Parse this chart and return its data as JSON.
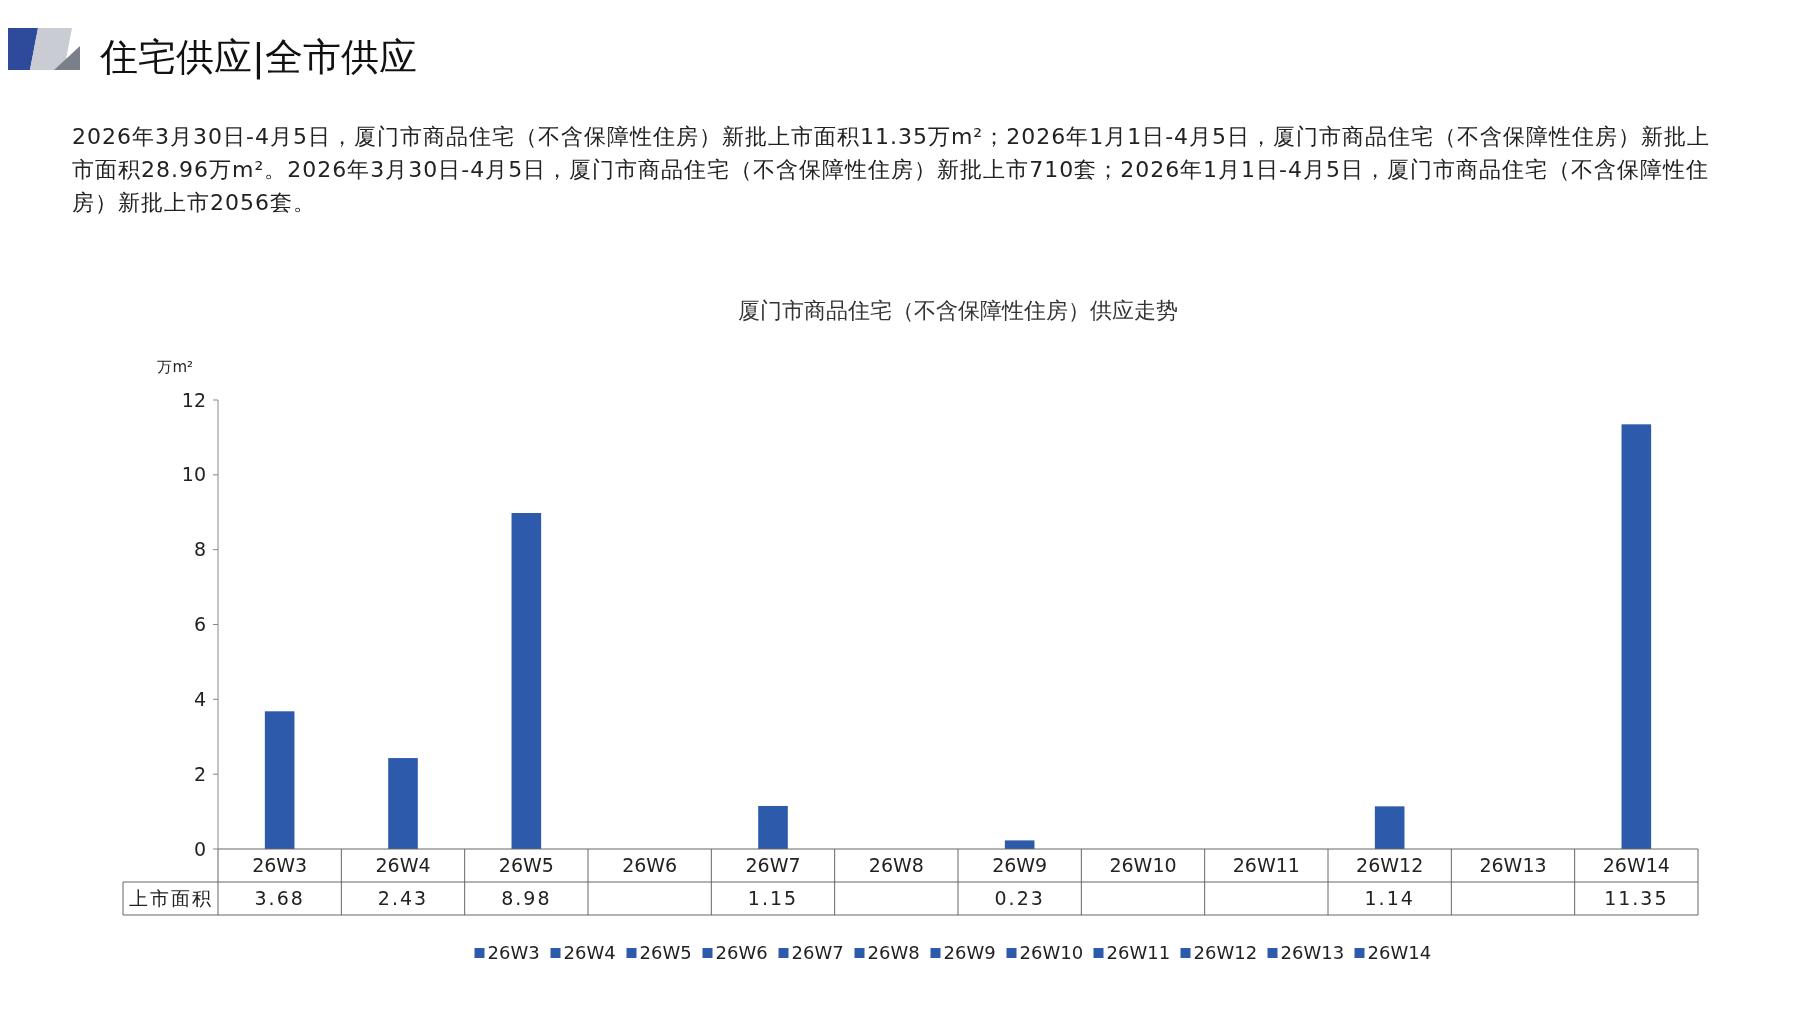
{
  "chart_data": {
    "type": "bar",
    "title": "厦门市商品住宅（不含保障性住房）供应走势",
    "ylabel": "万m²",
    "annotations": [
      "住宅供应|全市供应",
      "2026年3月30日-4月5日，厦门市商品住宅（不含保障性住房）新批上市面积11.35万m²；2026年1月1日-4月5日，厦门市商品住宅（不含保障性住房）新批上市面积28.96万m²。2026年3月30日-4月5日，厦门市商品住宅（不含保障性住房）新批上市710套；2026年1月1日-4月5日，厦门市商品住宅（不含保障性住房）新批上市2056套。"
    ],
    "categories": [
      "26W3",
      "26W4",
      "26W5",
      "26W6",
      "26W7",
      "26W8",
      "26W9",
      "26W10",
      "26W11",
      "26W12",
      "26W13",
      "26W14"
    ],
    "series": [
      {
        "name": "上市面积",
        "color": "#2e5aac",
        "values": [
          3.68,
          2.43,
          8.98,
          null,
          1.15,
          null,
          0.23,
          null,
          null,
          1.14,
          null,
          11.35
        ]
      }
    ],
    "ylim": [
      0,
      12
    ],
    "yticks": [
      0,
      2,
      4,
      6,
      8,
      10,
      12
    ],
    "data_labels": true,
    "legend": "bottom"
  }
}
